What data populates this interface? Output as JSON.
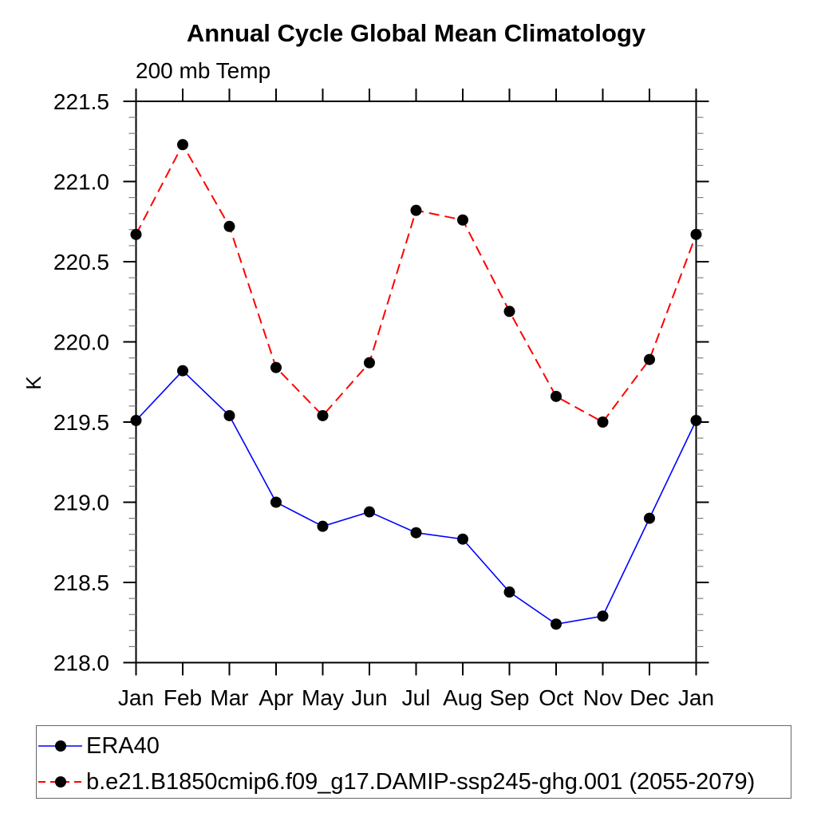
{
  "chart_data": {
    "type": "line",
    "title": "Annual Cycle Global Mean Climatology",
    "subtitle": "200 mb Temp",
    "xlabel": "",
    "ylabel": "K",
    "categories": [
      "Jan",
      "Feb",
      "Mar",
      "Apr",
      "May",
      "Jun",
      "Jul",
      "Aug",
      "Sep",
      "Oct",
      "Nov",
      "Dec",
      "Jan"
    ],
    "series": [
      {
        "name": "ERA40",
        "color": "#0000ff",
        "line_style": "solid",
        "marker": "filled-circle",
        "marker_color": "#000000",
        "values": [
          219.51,
          219.82,
          219.54,
          219.0,
          218.85,
          218.94,
          218.81,
          218.77,
          218.44,
          218.24,
          218.29,
          218.9,
          219.51
        ]
      },
      {
        "name": "b.e21.B1850cmip6.f09_g17.DAMIP-ssp245-ghg.001 (2055-2079)",
        "color": "#ff0000",
        "line_style": "dashed",
        "marker": "filled-circle",
        "marker_color": "#000000",
        "values": [
          220.67,
          221.23,
          220.72,
          219.84,
          219.54,
          219.87,
          220.82,
          220.76,
          220.19,
          219.66,
          219.5,
          219.89,
          220.67
        ]
      }
    ],
    "yticks": [
      218.0,
      218.5,
      219.0,
      219.5,
      220.0,
      220.5,
      221.0,
      221.5
    ],
    "ytick_labels": [
      "218.0",
      "218.5",
      "219.0",
      "219.5",
      "220.0",
      "220.5",
      "221.0",
      "221.5"
    ],
    "ylim": [
      218.0,
      221.5
    ],
    "y_minor_step": 0.1,
    "grid": false,
    "tick_direction": "out",
    "legend_position": "bottom-left-box"
  }
}
